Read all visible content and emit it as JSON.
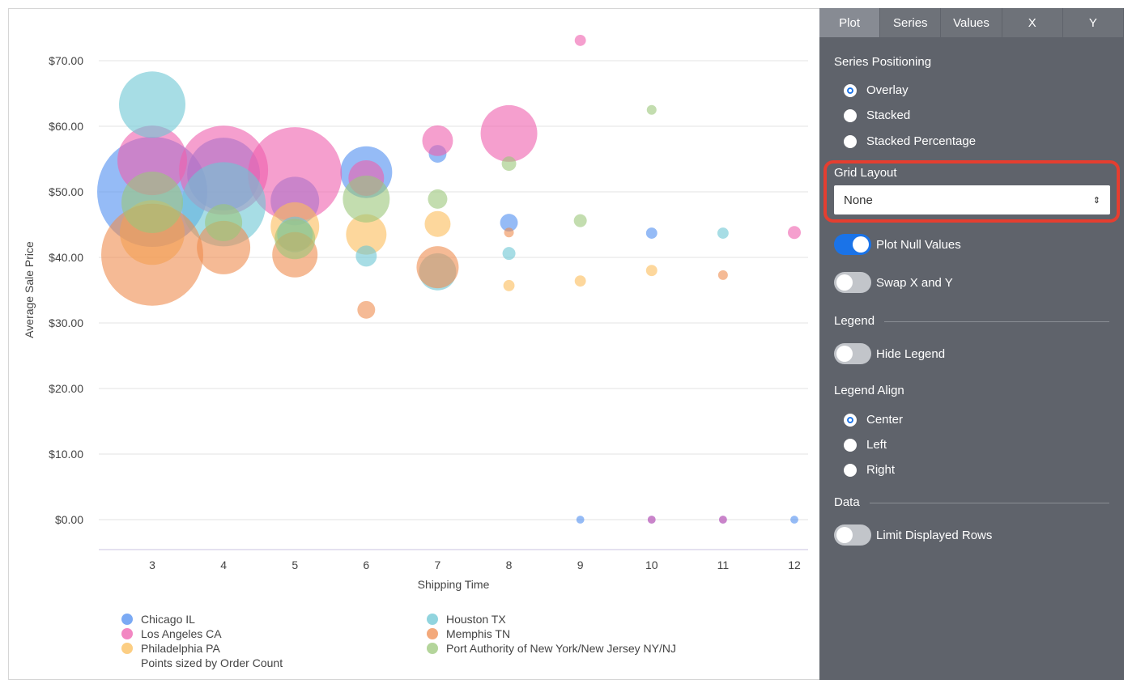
{
  "tabs": [
    {
      "label": "Plot",
      "active": true
    },
    {
      "label": "Series"
    },
    {
      "label": "Values"
    },
    {
      "label": "X"
    },
    {
      "label": "Y"
    }
  ],
  "panel": {
    "series_positioning": {
      "label": "Series Positioning",
      "options": [
        "Overlay",
        "Stacked",
        "Stacked Percentage"
      ],
      "selected": "Overlay"
    },
    "grid_layout": {
      "label": "Grid Layout",
      "value": "None",
      "highlight_color": "#e53e30"
    },
    "plot_null_values": {
      "label": "Plot Null Values",
      "on": true
    },
    "swap_xy": {
      "label": "Swap X and Y",
      "on": false
    },
    "legend": {
      "label": "Legend"
    },
    "hide_legend": {
      "label": "Hide Legend",
      "on": false
    },
    "legend_align": {
      "label": "Legend Align",
      "options": [
        "Center",
        "Left",
        "Right"
      ],
      "selected": "Center"
    },
    "data": {
      "label": "Data"
    },
    "limit_rows": {
      "label": "Limit Displayed Rows",
      "on": false
    }
  },
  "legend": {
    "items": [
      "Chicago IL",
      "Houston TX",
      "Los Angeles CA",
      "Memphis TN",
      "Philadelphia PA",
      "Port Authority of New York/New Jersey NY/NJ"
    ],
    "note": "Points sized by Order Count"
  },
  "chart_data": {
    "type": "scatter",
    "xlabel": "Shipping Time",
    "ylabel": "Average Sale Price",
    "xticks": [
      "3",
      "4",
      "5",
      "6",
      "7",
      "8",
      "9",
      "10",
      "11",
      "12"
    ],
    "yticks": [
      "$0.00",
      "$10.00",
      "$20.00",
      "$30.00",
      "$40.00",
      "$50.00",
      "$60.00",
      "$70.00"
    ],
    "ylim": [
      0,
      70
    ],
    "xlim": [
      3,
      12
    ],
    "grid": true,
    "legend_position": "bottom",
    "series": [
      {
        "name": "Chicago IL",
        "color": "#4f8ef0",
        "points": [
          [
            3,
            50.0,
            1156
          ],
          [
            4,
            52.7,
            506
          ],
          [
            5,
            48.6,
            225
          ],
          [
            6,
            53.0,
            256
          ],
          [
            7,
            55.8,
            30
          ],
          [
            8,
            45.3,
            30
          ],
          [
            9,
            0,
            6
          ],
          [
            10,
            43.7,
            12
          ],
          [
            10,
            0,
            6
          ],
          [
            11,
            0,
            6
          ],
          [
            12,
            0,
            6
          ]
        ]
      },
      {
        "name": "Los Angeles CA",
        "color": "#ee5fae",
        "points": [
          [
            3,
            54.8,
            462
          ],
          [
            4,
            53.3,
            756
          ],
          [
            5,
            52.7,
            841
          ],
          [
            6,
            52.1,
            121
          ],
          [
            7,
            57.8,
            90
          ],
          [
            8,
            58.9,
            306
          ],
          [
            9,
            73.1,
            12
          ],
          [
            10,
            0,
            6
          ],
          [
            11,
            0,
            6
          ],
          [
            12,
            43.8,
            16
          ]
        ]
      },
      {
        "name": "Philadelphia PA",
        "color": "#fbbd5a",
        "points": [
          [
            3,
            43.8,
            400
          ],
          [
            5,
            44.7,
            225
          ],
          [
            6,
            43.5,
            156
          ],
          [
            7,
            45.1,
            64
          ],
          [
            8,
            35.7,
            12
          ],
          [
            9,
            36.4,
            12
          ],
          [
            10,
            38.0,
            12
          ]
        ]
      },
      {
        "name": "Houston TX",
        "color": "#6cc6d3",
        "points": [
          [
            3,
            63.3,
            420
          ],
          [
            4,
            48.1,
            676
          ],
          [
            5,
            43.5,
            121
          ],
          [
            6,
            40.2,
            42
          ],
          [
            7,
            37.8,
            132
          ],
          [
            8,
            40.6,
            16
          ],
          [
            11,
            43.7,
            12
          ]
        ]
      },
      {
        "name": "Memphis TN",
        "color": "#ef8c4f",
        "points": [
          [
            3,
            40.4,
            992
          ],
          [
            4,
            41.5,
            272
          ],
          [
            5,
            40.4,
            196
          ],
          [
            6,
            32.0,
            30
          ],
          [
            7,
            38.5,
            169
          ],
          [
            8,
            43.8,
            9
          ],
          [
            11,
            37.3,
            9
          ]
        ]
      },
      {
        "name": "Port Authority of New York/New Jersey NY/NJ",
        "color": "#9bc77a",
        "points": [
          [
            3,
            48.4,
            361
          ],
          [
            4,
            45.3,
            132
          ],
          [
            5,
            42.8,
            156
          ],
          [
            6,
            48.9,
            210
          ],
          [
            7,
            48.9,
            36
          ],
          [
            8,
            54.3,
            20
          ],
          [
            9,
            45.6,
            16
          ],
          [
            10,
            62.5,
            9
          ]
        ]
      }
    ]
  }
}
